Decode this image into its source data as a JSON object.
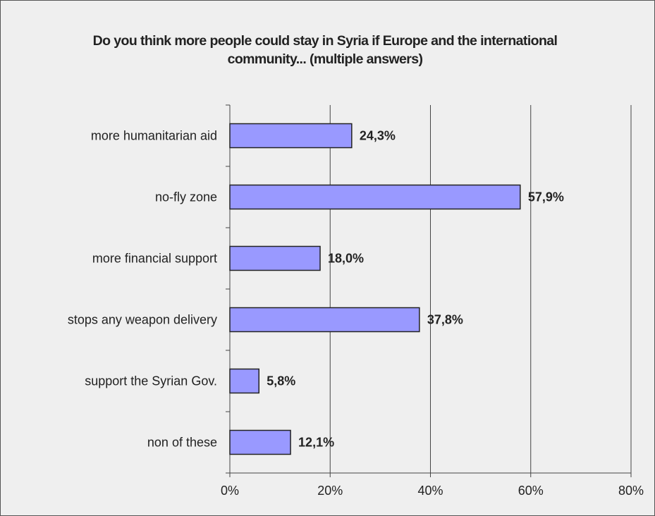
{
  "chart_data": {
    "type": "hbar",
    "title": "Do you think more people could stay in Syria if Europe and the international community... (multiple answers)",
    "categories": [
      "more humanitarian aid",
      "no-fly zone",
      "more financial support",
      "stops any weapon delivery",
      "support the Syrian Gov.",
      "non of these"
    ],
    "values": [
      24.3,
      57.9,
      18.0,
      37.8,
      5.8,
      12.1
    ],
    "value_labels": [
      "24,3%",
      "57,9%",
      "18,0%",
      "37,8%",
      "5,8%",
      "12,1%"
    ],
    "color": "#9999ff",
    "xlim": [
      0,
      80
    ],
    "xticks": [
      {
        "value": 0,
        "label": "0%"
      },
      {
        "value": 20,
        "label": "20%"
      },
      {
        "value": 40,
        "label": "40%"
      },
      {
        "value": 60,
        "label": "60%"
      },
      {
        "value": 80,
        "label": "80%"
      }
    ],
    "grid": true
  }
}
